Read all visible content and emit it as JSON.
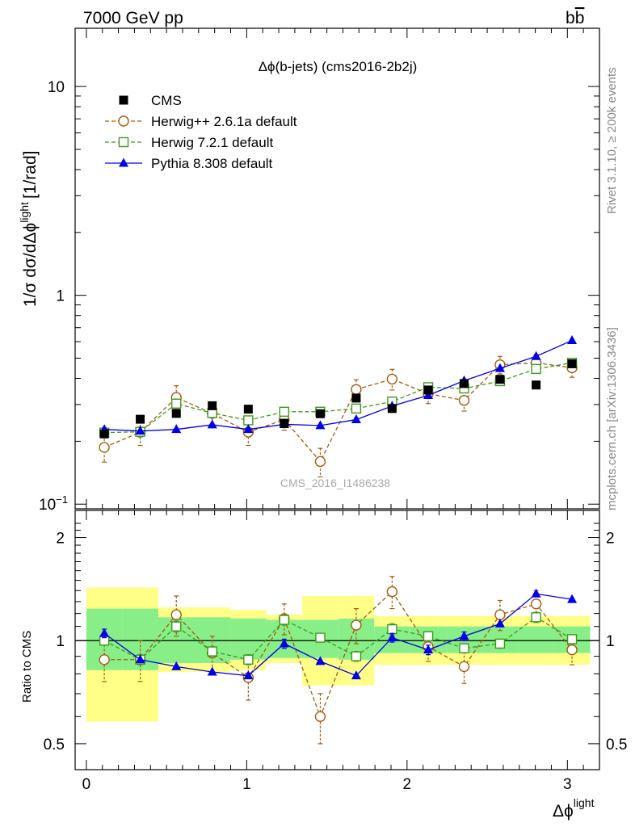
{
  "header": {
    "left": "7000 GeV pp",
    "right": "b",
    "right_bar": "b"
  },
  "side_labels": {
    "rivet": "Rivet 3.1.10, ≥ 200k events",
    "mcplots": "mcplots.cern.ch [arXiv:1306.3436]"
  },
  "chart_data": [
    {
      "type": "scatter",
      "title": "Δϕ(b-jets) (cms2016-2b2j)",
      "watermark": "CMS_2016_I1486238",
      "ylabel": "1/σ dσ/dΔϕ",
      "ylabel_sup": "light",
      "ylabel_unit": "[1/rad]",
      "ylog": true,
      "ylim": [
        0.095,
        19
      ],
      "xlim": [
        -0.07,
        3.2
      ],
      "yticks": [
        {
          "value": 0.1,
          "label": "10",
          "sup": "−1"
        },
        {
          "value": 1,
          "label": "1",
          "sup": ""
        },
        {
          "value": 10,
          "label": "10",
          "sup": ""
        }
      ],
      "legend_position": "top-left",
      "x": [
        0.112,
        0.336,
        0.561,
        0.785,
        1.01,
        1.234,
        1.459,
        1.683,
        1.907,
        2.132,
        2.356,
        2.58,
        2.805,
        3.029
      ],
      "x_bin_edges": [
        0.0,
        0.224,
        0.449,
        0.673,
        0.898,
        1.122,
        1.346,
        1.571,
        1.795,
        2.02,
        2.244,
        2.468,
        2.693,
        2.917,
        3.142
      ],
      "series": [
        {
          "name": "CMS",
          "style": "data",
          "color": "#000000",
          "values": [
            0.217,
            0.255,
            0.272,
            0.296,
            0.285,
            0.244,
            0.271,
            0.322,
            0.287,
            0.352,
            0.378,
            0.396,
            0.372,
            0.47
          ]
        },
        {
          "name": "Herwig++ 2.6.1a default",
          "style": "circle-dashed",
          "color": "#a65a0c",
          "values": [
            0.187,
            0.221,
            0.324,
            0.272,
            0.221,
            0.254,
            0.16,
            0.354,
            0.397,
            0.338,
            0.314,
            0.465,
            0.475,
            0.45
          ],
          "errors": [
            0.028,
            0.03,
            0.045,
            0.035,
            0.03,
            0.028,
            0.025,
            0.04,
            0.045,
            0.035,
            0.035,
            0.045,
            0.045,
            0.045
          ]
        },
        {
          "name": "Herwig 7.2.1 default",
          "style": "square-dashed",
          "color": "#3c9a1c",
          "values": [
            0.22,
            0.222,
            0.303,
            0.273,
            0.252,
            0.277,
            0.277,
            0.287,
            0.31,
            0.363,
            0.358,
            0.388,
            0.444,
            0.475
          ],
          "errors": [
            0.012,
            0.012,
            0.015,
            0.013,
            0.012,
            0.013,
            0.013,
            0.013,
            0.014,
            0.016,
            0.016,
            0.017,
            0.018,
            0.019
          ]
        },
        {
          "name": "Pythia 8.308 default",
          "style": "triangle-solid",
          "color": "#0000e6",
          "values": [
            0.228,
            0.224,
            0.228,
            0.24,
            0.228,
            0.241,
            0.238,
            0.254,
            0.295,
            0.332,
            0.39,
            0.447,
            0.51,
            0.608
          ],
          "errors": [
            0.008,
            0.008,
            0.008,
            0.008,
            0.008,
            0.008,
            0.008,
            0.008,
            0.009,
            0.01,
            0.011,
            0.012,
            0.013,
            0.014
          ]
        }
      ]
    },
    {
      "type": "scatter",
      "ylabel": "Ratio to CMS",
      "xlabel": "Δϕ",
      "xlabel_sup": "light",
      "ylog": true,
      "ylim": [
        0.42,
        2.4
      ],
      "xlim": [
        -0.07,
        3.2
      ],
      "xticks": [
        0,
        1,
        2,
        3
      ],
      "yticks": [
        0.5,
        1,
        2
      ],
      "reference_line": 1,
      "band_inner": [
        [
          0.82,
          1.24
        ],
        [
          0.82,
          1.24
        ],
        [
          0.86,
          1.17
        ],
        [
          0.86,
          1.17
        ],
        [
          0.88,
          1.16
        ],
        [
          0.89,
          1.15
        ],
        [
          0.89,
          1.15
        ],
        [
          0.88,
          1.16
        ],
        [
          0.92,
          1.1
        ],
        [
          0.92,
          1.1
        ],
        [
          0.92,
          1.1
        ],
        [
          0.92,
          1.1
        ],
        [
          0.92,
          1.1
        ],
        [
          0.92,
          1.1
        ]
      ],
      "band_outer": [
        [
          0.58,
          1.43
        ],
        [
          0.58,
          1.43
        ],
        [
          0.81,
          1.25
        ],
        [
          0.81,
          1.25
        ],
        [
          0.82,
          1.23
        ],
        [
          0.86,
          1.19
        ],
        [
          0.74,
          1.35
        ],
        [
          0.74,
          1.35
        ],
        [
          0.85,
          1.18
        ],
        [
          0.85,
          1.18
        ],
        [
          0.85,
          1.18
        ],
        [
          0.85,
          1.18
        ],
        [
          0.85,
          1.18
        ],
        [
          0.85,
          1.18
        ]
      ],
      "series": [
        {
          "name": "Herwig++ 2.6.1a default",
          "values": [
            0.88,
            0.88,
            1.19,
            0.92,
            0.78,
            1.16,
            0.6,
            1.11,
            1.39,
            0.96,
            0.84,
            1.19,
            1.28,
            0.94
          ],
          "errors": [
            0.12,
            0.12,
            0.16,
            0.11,
            0.11,
            0.12,
            0.1,
            0.13,
            0.15,
            0.09,
            0.09,
            0.12,
            0.12,
            0.09
          ]
        },
        {
          "name": "Herwig 7.2.1 default",
          "values": [
            1.0,
            0.88,
            1.1,
            0.93,
            0.88,
            1.15,
            1.02,
            0.9,
            1.08,
            1.03,
            0.95,
            0.98,
            1.17,
            1.01
          ],
          "errors": [
            0.03,
            0.03,
            0.04,
            0.03,
            0.03,
            0.04,
            0.03,
            0.03,
            0.04,
            0.03,
            0.03,
            0.03,
            0.04,
            0.03
          ]
        },
        {
          "name": "Pythia 8.308 default",
          "values": [
            1.05,
            0.88,
            0.84,
            0.81,
            0.79,
            0.98,
            0.87,
            0.79,
            1.02,
            0.94,
            1.03,
            1.12,
            1.37,
            1.32
          ],
          "errors": [
            0.03,
            0.02,
            0.02,
            0.02,
            0.02,
            0.03,
            0.02,
            0.02,
            0.03,
            0.03,
            0.03,
            0.03,
            0.03,
            0.03
          ]
        }
      ]
    }
  ]
}
